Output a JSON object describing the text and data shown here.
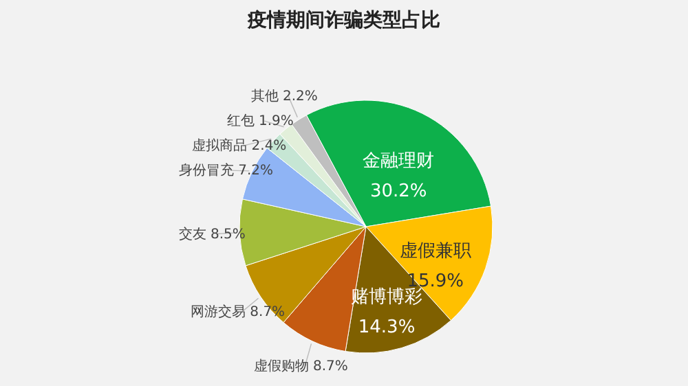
{
  "chart_data": {
    "type": "pie",
    "title": "疫情期间诈骗类型占比",
    "categories": [
      "金融理财",
      "虚假兼职",
      "赌博博彩",
      "虚假购物",
      "网游交易",
      "交友",
      "身份冒充",
      "虚拟商品",
      "红包",
      "其他"
    ],
    "values": [
      30.2,
      15.9,
      14.3,
      8.7,
      8.7,
      8.5,
      7.2,
      2.4,
      1.9,
      2.2
    ],
    "colors": [
      "#0db04b",
      "#ffc000",
      "#7f6000",
      "#c55a11",
      "#bf9000",
      "#a3bd3a",
      "#8fb4f5",
      "#c6e6d4",
      "#e2efda",
      "#bfbfbf"
    ],
    "value_labels": [
      "30.2%",
      "15.9%",
      "14.3%",
      "8.7%",
      "8.7%",
      "8.5%",
      "7.2%",
      "2.4%",
      "1.9%",
      "2.2%"
    ],
    "legend": false
  }
}
